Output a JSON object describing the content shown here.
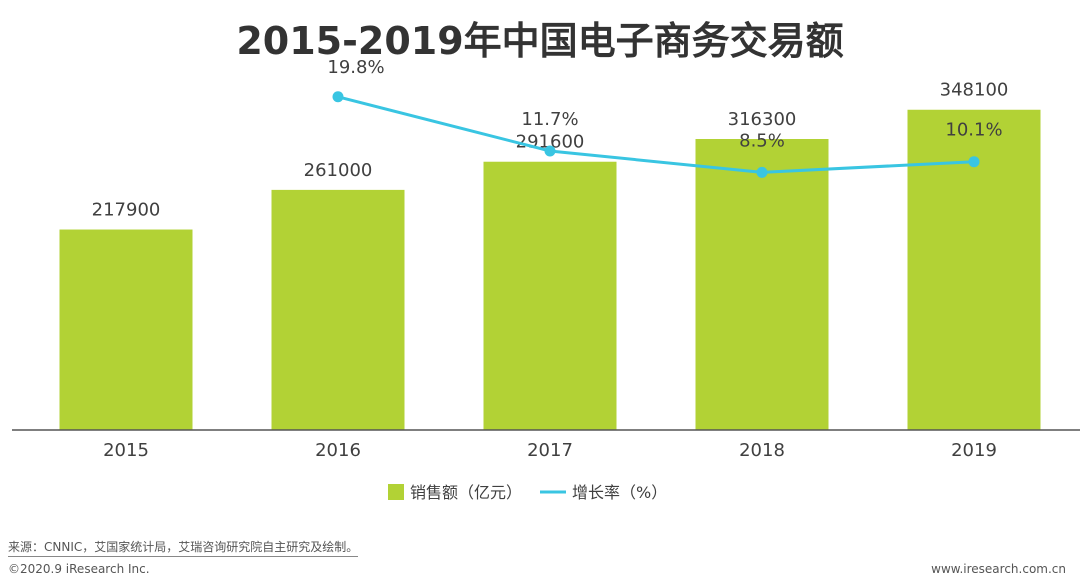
{
  "title": "2015-2019年中国电子商务交易额",
  "chart_data": {
    "type": "bar",
    "categories": [
      "2015",
      "2016",
      "2017",
      "2018",
      "2019"
    ],
    "series": [
      {
        "name": "销售额（亿元）",
        "type": "bar",
        "values": [
          217900,
          261000,
          291600,
          316300,
          348100
        ],
        "labels": [
          "217900",
          "261000",
          "291600",
          "316300",
          "348100"
        ]
      },
      {
        "name": "增长率（%）",
        "type": "line",
        "values": [
          null,
          19.8,
          11.7,
          8.5,
          10.1
        ],
        "labels": [
          "",
          "19.8%",
          "11.7%",
          "8.5%",
          "10.1%"
        ]
      }
    ],
    "ylim": [
      0,
      400000
    ],
    "y2lim": [
      -30,
      25
    ],
    "legend": "bottom-center",
    "grid": false
  },
  "colors": {
    "bar": "#b2d235",
    "line": "#39c5e2",
    "axis": "#555555",
    "text": "#404040"
  },
  "footer": {
    "source": "来源：CNNIC，艾国家统计局，艾瑞咨询研究院自主研究及绘制。",
    "copyright": "©2020.9 iResearch Inc.",
    "url": "www.iresearch.com.cn"
  }
}
